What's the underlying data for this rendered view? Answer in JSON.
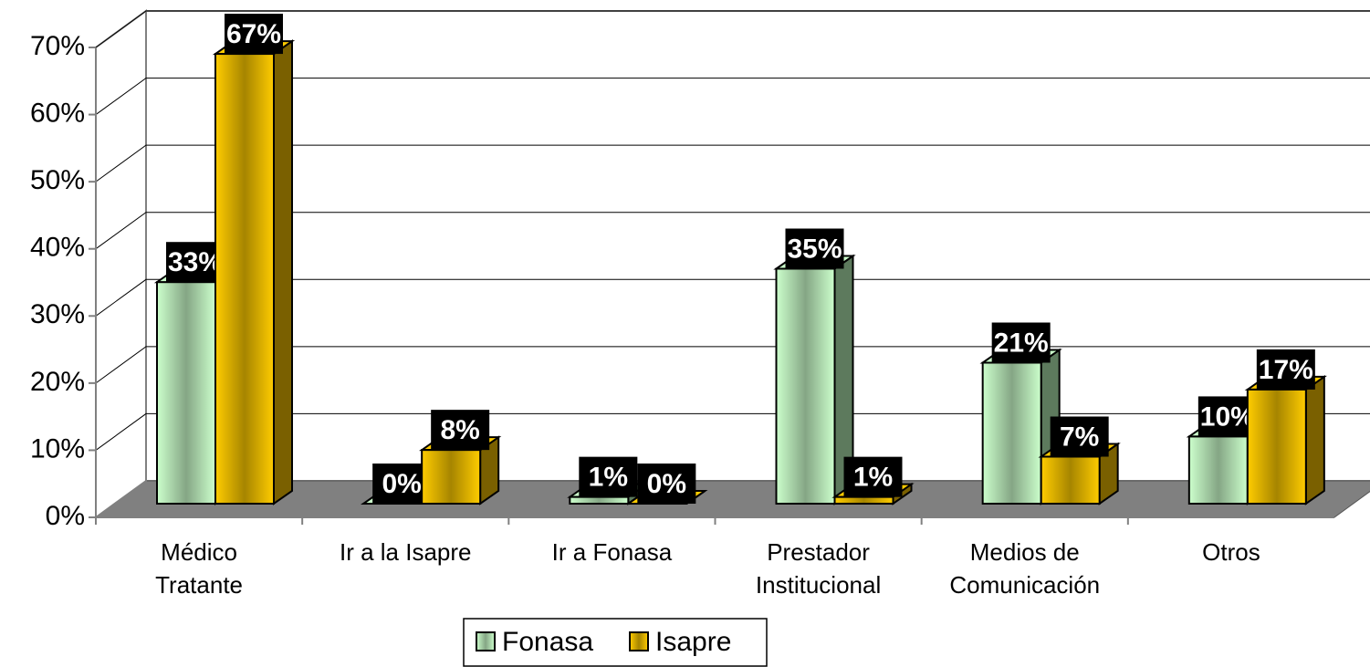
{
  "chart_data": {
    "type": "bar3d",
    "categories": [
      [
        "Médico",
        "Tratante"
      ],
      [
        "Ir a la Isapre"
      ],
      [
        "Ir a Fonasa"
      ],
      [
        "Prestador",
        "Institucional"
      ],
      [
        "Medios de",
        "Comunicación"
      ],
      [
        "Otros"
      ]
    ],
    "series": [
      {
        "name": "Fonasa",
        "color": "#ccffcc",
        "values": [
          33,
          0,
          1,
          35,
          21,
          10
        ],
        "value_labels": [
          "33%",
          "0%",
          "1%",
          "35%",
          "21%",
          "10%"
        ]
      },
      {
        "name": "Isapre",
        "color": "#ffcc00",
        "values": [
          67,
          8,
          0,
          1,
          7,
          17
        ],
        "value_labels": [
          "67%",
          "8%",
          "0%",
          "1%",
          "7%",
          "17%"
        ]
      }
    ],
    "ylim": [
      0,
      70
    ],
    "yticks": [
      {
        "value": 0,
        "label": "0%"
      },
      {
        "value": 10,
        "label": "10%"
      },
      {
        "value": 20,
        "label": "20%"
      },
      {
        "value": 30,
        "label": "30%"
      },
      {
        "value": 40,
        "label": "40%"
      },
      {
        "value": 50,
        "label": "50%"
      },
      {
        "value": 60,
        "label": "60%"
      },
      {
        "value": 70,
        "label": "70%"
      }
    ],
    "grid": true,
    "legend": "bottom"
  }
}
